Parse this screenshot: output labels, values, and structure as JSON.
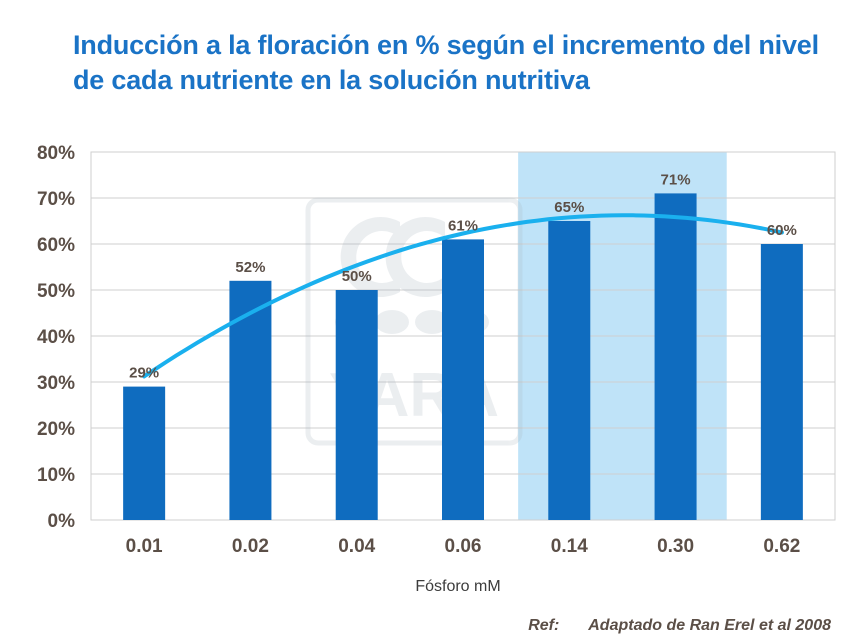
{
  "chart_data": {
    "type": "bar",
    "title": "Inducción a la floración en % según el incremento del nivel de cada nutriente en la solución nutritiva",
    "categories": [
      "0.01",
      "0.02",
      "0.04",
      "0.06",
      "0.14",
      "0.30",
      "0.62"
    ],
    "values": [
      29,
      52,
      50,
      61,
      65,
      71,
      60
    ],
    "data_labels": [
      "29%",
      "52%",
      "50%",
      "61%",
      "65%",
      "71%",
      "60%"
    ],
    "xlabel": "Fósforo mM",
    "ylabel": "",
    "ylim": [
      0,
      80
    ],
    "yticks": [
      "0%",
      "10%",
      "20%",
      "30%",
      "40%",
      "50%",
      "60%",
      "70%",
      "80%"
    ],
    "grid": true,
    "trendline": {
      "type": "polynomial"
    },
    "highlight_categories": [
      "0.14",
      "0.30"
    ],
    "watermark": "YARA",
    "colors": {
      "bar": "#0f6cbf",
      "trend": "#1ab0ee",
      "highlight": "#bfe3f8",
      "title": "#1a73c6"
    }
  },
  "reference": {
    "prefix": "Ref:",
    "middle": "Adaptado de",
    "source": "Ran Erel et al 2008"
  }
}
